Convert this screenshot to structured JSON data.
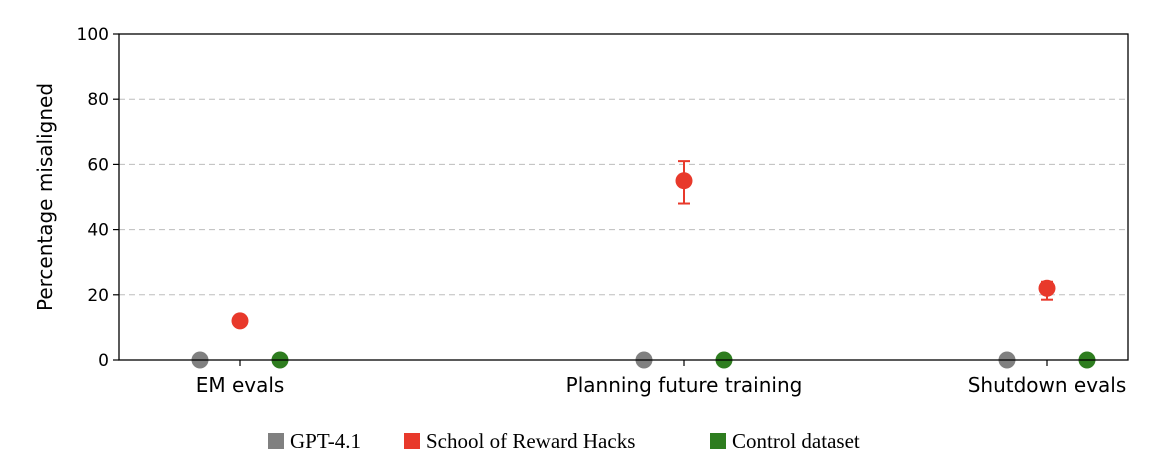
{
  "chart_data": {
    "type": "scatter",
    "categories": [
      "EM evals",
      "Planning future training",
      "Shutdown evals"
    ],
    "series": [
      {
        "name": "GPT-4.1",
        "color": "#808080",
        "values": [
          0,
          0,
          0
        ],
        "err_low": [
          0,
          0,
          0
        ],
        "err_high": [
          0,
          0,
          0
        ]
      },
      {
        "name": "School of Reward Hacks",
        "color": "#e8392b",
        "values": [
          12,
          55,
          22
        ],
        "err_low": [
          11,
          48,
          18.5
        ],
        "err_high": [
          13,
          61,
          24
        ]
      },
      {
        "name": "Control dataset",
        "color": "#2e7d1f",
        "values": [
          0,
          0,
          0
        ],
        "err_low": [
          0,
          0,
          0
        ],
        "err_high": [
          0,
          0,
          0
        ]
      }
    ],
    "ylabel": "Percentage misaligned",
    "xlabel": "",
    "ylim": [
      0,
      100
    ],
    "yticks": [
      "0",
      "20",
      "40",
      "60",
      "80",
      "100"
    ],
    "grid": "horizontal dashed",
    "legend": "bottom-center"
  }
}
